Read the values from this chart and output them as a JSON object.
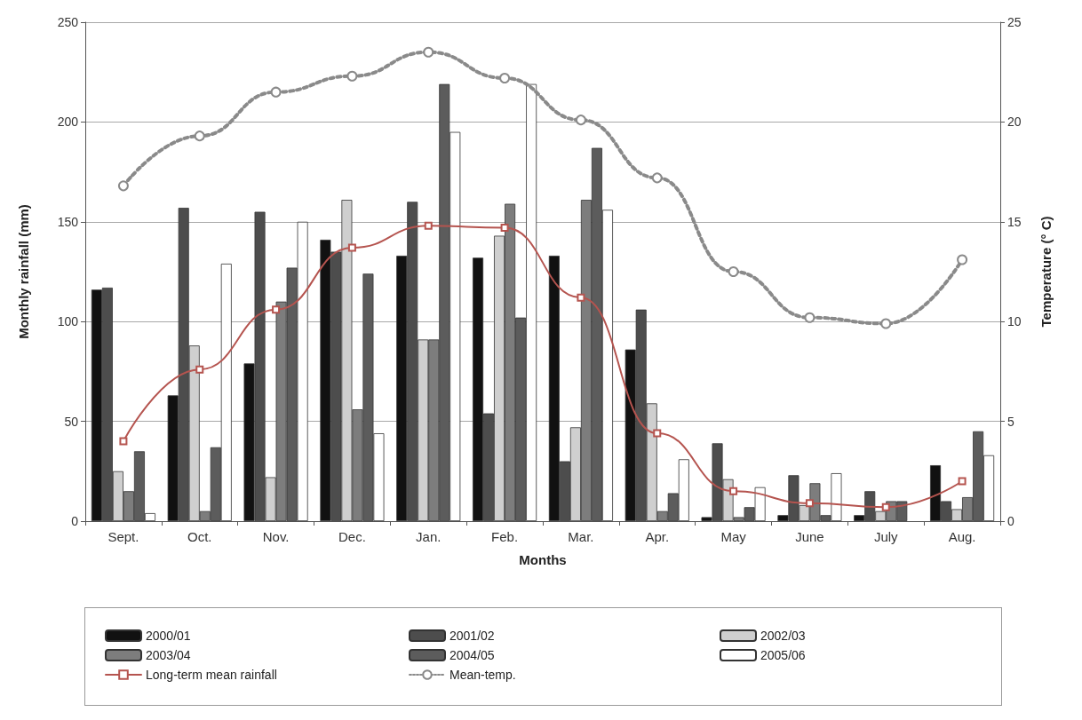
{
  "chart_data": {
    "type": "bar",
    "xlabel": "Months",
    "ylabel": "Monthly rainfall (mm)",
    "y2label": "Temperature (° C)",
    "categories": [
      "Sept.",
      "Oct.",
      "Nov.",
      "Dec.",
      "Jan.",
      "Feb.",
      "Mar.",
      "Apr.",
      "May",
      "June",
      "July",
      "Aug."
    ],
    "series": [
      {
        "name": "2000/01",
        "color": "#111111",
        "values": [
          116,
          63,
          79,
          141,
          133,
          132,
          133,
          86,
          2,
          3,
          3,
          28
        ]
      },
      {
        "name": "2001/02",
        "color": "#4d4d4d",
        "values": [
          117,
          157,
          155,
          135,
          160,
          54,
          30,
          106,
          39,
          23,
          15,
          10
        ]
      },
      {
        "name": "2002/03",
        "color": "#cfcfcf",
        "values": [
          25,
          88,
          22,
          161,
          91,
          143,
          47,
          59,
          21,
          8,
          5,
          6
        ]
      },
      {
        "name": "2003/04",
        "color": "#7d7d7d",
        "values": [
          15,
          5,
          110,
          56,
          91,
          159,
          161,
          5,
          2,
          19,
          10,
          12
        ]
      },
      {
        "name": "2004/05",
        "color": "#5c5c5c",
        "values": [
          35,
          37,
          127,
          124,
          219,
          102,
          187,
          14,
          7,
          3,
          10,
          45
        ]
      },
      {
        "name": "2005/06",
        "color": "#ffffff",
        "values": [
          4,
          129,
          150,
          44,
          195,
          219,
          156,
          31,
          17,
          24,
          null,
          33
        ]
      },
      {
        "name": "Long-term mean rainfall",
        "type": "line",
        "color": "#b5544f",
        "marker": "square",
        "line_style": "solid",
        "values": [
          40,
          76,
          106,
          137,
          148,
          147,
          112,
          44,
          15,
          9,
          7,
          20
        ]
      },
      {
        "name": "Mean-temp.",
        "type": "line",
        "axis": "y2",
        "color": "#8a8a8a",
        "marker": "circle",
        "line_style": "dotted",
        "values": [
          16.8,
          19.3,
          21.5,
          22.3,
          23.5,
          22.2,
          20.1,
          17.2,
          12.5,
          10.2,
          9.9,
          13.1
        ]
      }
    ],
    "ylim": [
      0,
      250
    ],
    "yticks": [
      0,
      50,
      100,
      150,
      200,
      250
    ],
    "y2lim": [
      0,
      25
    ],
    "y2ticks": [
      0,
      5,
      10,
      15,
      20,
      25
    ],
    "grid": "y",
    "legend": "bottom"
  }
}
